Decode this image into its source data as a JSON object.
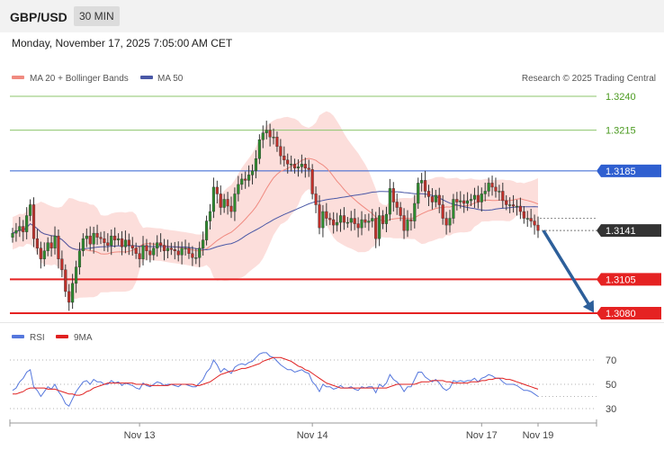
{
  "header": {
    "pair": "GBP/USD",
    "timeframe": "30 MIN"
  },
  "date_text": "Monday, November 17, 2025 7:05:00 AM CET",
  "legend": {
    "ma20": "MA 20 + Bollinger Bands",
    "ma50": "MA 50",
    "credit": "Research © 2025 Trading Central"
  },
  "rsi_legend": {
    "rsi": "RSI",
    "ma": "9MA"
  },
  "colors": {
    "bull": "#2e8b2e",
    "bear": "#c0302a",
    "band": "#fbd8d5",
    "ma20": "#f08a80",
    "ma50": "#4a58a6",
    "green_level": "#8cc56b",
    "blue_level": "#2f5fd0",
    "red_level": "#e52222",
    "current": "#333333",
    "arrow": "#2d5f9a"
  },
  "chart_data": [
    {
      "type": "candlestick",
      "title": "GBP/USD",
      "ylim": [
        1.307,
        1.325
      ],
      "x_ticks": [
        {
          "label": "Nov 13",
          "index": 36
        },
        {
          "label": "Nov 14",
          "index": 85
        },
        {
          "label": "Nov 17",
          "index": 133
        },
        {
          "label": "Nov 19",
          "index": 149
        }
      ],
      "levels": [
        {
          "label": "1.3240",
          "value": 1.324,
          "kind": "resistance-minor"
        },
        {
          "label": "1.3215",
          "value": 1.3215,
          "kind": "resistance-minor"
        },
        {
          "label": "1.3185",
          "value": 1.3185,
          "kind": "resistance"
        },
        {
          "label": "1.3141",
          "value": 1.3141,
          "kind": "current"
        },
        {
          "label": "1.3105",
          "value": 1.3105,
          "kind": "support"
        },
        {
          "label": "1.3080",
          "value": 1.308,
          "kind": "target"
        }
      ],
      "closes": [
        1.3139,
        1.3141,
        1.3144,
        1.314,
        1.3152,
        1.316,
        1.3135,
        1.3128,
        1.312,
        1.3126,
        1.3132,
        1.3128,
        1.3137,
        1.312,
        1.3112,
        1.3096,
        1.3088,
        1.3102,
        1.3114,
        1.3126,
        1.3135,
        1.3137,
        1.3131,
        1.3139,
        1.3136,
        1.3135,
        1.3132,
        1.313,
        1.3137,
        1.3134,
        1.3135,
        1.3129,
        1.3134,
        1.313,
        1.3128,
        1.3124,
        1.312,
        1.313,
        1.3126,
        1.3123,
        1.3128,
        1.3132,
        1.313,
        1.3126,
        1.3128,
        1.3127,
        1.3126,
        1.3123,
        1.3128,
        1.3128,
        1.3124,
        1.3121,
        1.3121,
        1.3128,
        1.3134,
        1.3148,
        1.3155,
        1.3173,
        1.3168,
        1.3158,
        1.3164,
        1.3159,
        1.3155,
        1.3168,
        1.3175,
        1.3179,
        1.3178,
        1.3182,
        1.3185,
        1.3194,
        1.3208,
        1.3213,
        1.3215,
        1.321,
        1.321,
        1.3203,
        1.3196,
        1.3193,
        1.319,
        1.319,
        1.3187,
        1.3188,
        1.319,
        1.3187,
        1.3186,
        1.3168,
        1.316,
        1.3143,
        1.3155,
        1.315,
        1.3149,
        1.3145,
        1.3147,
        1.3152,
        1.3147,
        1.3147,
        1.315,
        1.3146,
        1.3143,
        1.3149,
        1.3147,
        1.3148,
        1.315,
        1.3135,
        1.3152,
        1.3146,
        1.3153,
        1.3172,
        1.3162,
        1.3158,
        1.3152,
        1.3141,
        1.3149,
        1.3148,
        1.3161,
        1.3176,
        1.3178,
        1.317,
        1.3166,
        1.3162,
        1.3167,
        1.316,
        1.315,
        1.3145,
        1.315,
        1.3164,
        1.3162,
        1.3163,
        1.3161,
        1.3163,
        1.3164,
        1.3167,
        1.3162,
        1.3168,
        1.317,
        1.3176,
        1.3173,
        1.317,
        1.317,
        1.3163,
        1.316,
        1.316,
        1.3159,
        1.3159,
        1.3155,
        1.315,
        1.315,
        1.3148,
        1.3145,
        1.3141
      ]
    },
    {
      "type": "line",
      "title": "RSI",
      "ylim": [
        25,
        80
      ],
      "y_ticks": [
        70,
        50,
        30
      ],
      "series": [
        {
          "name": "RSI",
          "values": [
            45,
            47,
            52,
            55,
            60,
            62,
            48,
            45,
            40,
            44,
            48,
            46,
            50,
            44,
            40,
            34,
            32,
            38,
            44,
            48,
            52,
            53,
            50,
            54,
            52,
            52,
            50,
            50,
            53,
            51,
            52,
            49,
            51,
            50,
            49,
            47,
            46,
            51,
            49,
            48,
            50,
            52,
            51,
            49,
            50,
            50,
            49,
            48,
            50,
            50,
            49,
            48,
            48,
            51,
            54,
            60,
            63,
            70,
            66,
            60,
            63,
            61,
            59,
            64,
            66,
            67,
            66,
            68,
            69,
            72,
            75,
            76,
            76,
            73,
            72,
            69,
            66,
            64,
            62,
            62,
            60,
            61,
            62,
            60,
            59,
            52,
            49,
            44,
            50,
            48,
            48,
            46,
            47,
            49,
            47,
            47,
            48,
            46,
            45,
            48,
            47,
            48,
            48,
            43,
            50,
            48,
            51,
            58,
            54,
            52,
            49,
            44,
            48,
            48,
            54,
            60,
            60,
            56,
            54,
            52,
            54,
            51,
            47,
            45,
            47,
            53,
            52,
            53,
            52,
            53,
            53,
            55,
            52,
            55,
            56,
            58,
            57,
            55,
            55,
            52,
            50,
            50,
            50,
            49,
            47,
            45,
            45,
            44,
            42,
            40
          ]
        },
        {
          "name": "9MA",
          "values": [
            42,
            42,
            43,
            44,
            46,
            47,
            47,
            47,
            47,
            47,
            46,
            46,
            46,
            45,
            44,
            43,
            42,
            42,
            41,
            41,
            42,
            44,
            45,
            47,
            48,
            49,
            50,
            51,
            51,
            51,
            51,
            51,
            51,
            51,
            51,
            50,
            50,
            50,
            50,
            49,
            49,
            49,
            49,
            49,
            49,
            50,
            50,
            50,
            50,
            50,
            50,
            50,
            49,
            49,
            50,
            51,
            52,
            54,
            56,
            58,
            59,
            60,
            61,
            61,
            62,
            63,
            63,
            64,
            65,
            66,
            67,
            69,
            70,
            71,
            72,
            72,
            72,
            71,
            70,
            69,
            67,
            65,
            64,
            62,
            61,
            59,
            57,
            55,
            53,
            51,
            50,
            49,
            48,
            47,
            47,
            47,
            47,
            47,
            47,
            47,
            47,
            47,
            47,
            47,
            47,
            47,
            47,
            48,
            49,
            50,
            50,
            50,
            50,
            50,
            50,
            51,
            52,
            52,
            52,
            53,
            53,
            53,
            53,
            52,
            52,
            51,
            51,
            51,
            51,
            51,
            52,
            52,
            52,
            53,
            53,
            54,
            54,
            55,
            55,
            55,
            54,
            54,
            53,
            52,
            51,
            50,
            49,
            48,
            47,
            46
          ]
        }
      ]
    }
  ]
}
